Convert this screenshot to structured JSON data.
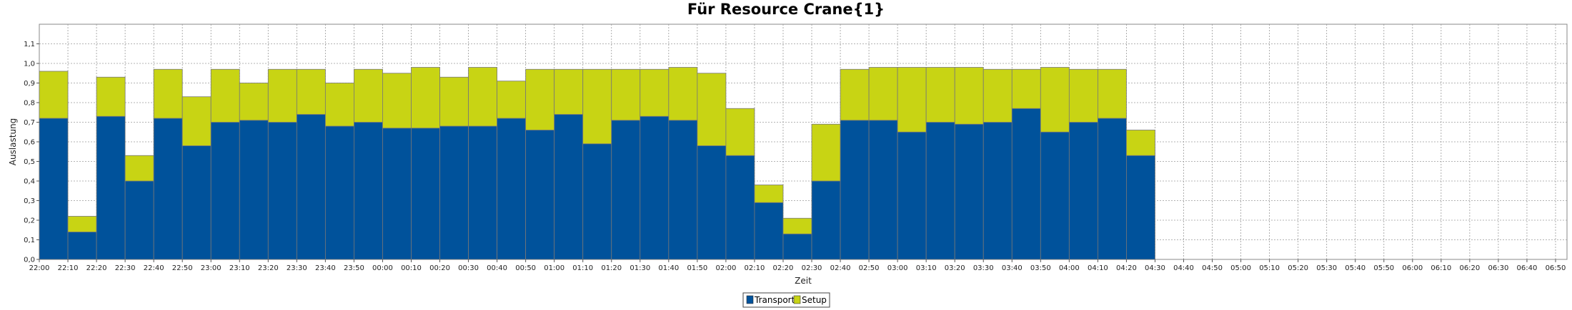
{
  "chart_data": {
    "type": "bar",
    "stacked": true,
    "title": "Für Resource Crane{1}",
    "xlabel": "Zeit",
    "ylabel": "Auslastung",
    "ylim": [
      0,
      1.2
    ],
    "yticks": [
      "0,0",
      "0,1",
      "0,2",
      "0,3",
      "0,4",
      "0,5",
      "0,6",
      "0,7",
      "0,8",
      "0,9",
      "1,0",
      "1,1"
    ],
    "x_ticks": [
      "22:00",
      "22:10",
      "22:20",
      "22:30",
      "22:40",
      "22:50",
      "23:00",
      "23:10",
      "23:20",
      "23:30",
      "23:40",
      "23:50",
      "00:00",
      "00:10",
      "00:20",
      "00:30",
      "00:40",
      "00:50",
      "01:00",
      "01:10",
      "01:20",
      "01:30",
      "01:40",
      "01:50",
      "02:00",
      "02:10",
      "02:20",
      "02:30",
      "02:40",
      "02:50",
      "03:00",
      "03:10",
      "03:20",
      "03:30",
      "03:40",
      "03:50",
      "04:00",
      "04:10",
      "04:20",
      "04:30",
      "04:40",
      "04:50",
      "05:00",
      "05:10",
      "05:20",
      "05:30",
      "05:40",
      "05:50",
      "06:00",
      "06:10",
      "06:20",
      "06:30",
      "06:40",
      "06:50"
    ],
    "x_max": "06:54",
    "grid": true,
    "legend_position": "bottom-center",
    "series": [
      {
        "name": "Transport",
        "color": "#00529b",
        "values": [
          0.72,
          0.14,
          0.73,
          0.4,
          0.72,
          0.58,
          0.7,
          0.71,
          0.7,
          0.74,
          0.68,
          0.7,
          0.67,
          0.67,
          0.68,
          0.68,
          0.72,
          0.66,
          0.74,
          0.59,
          0.71,
          0.73,
          0.71,
          0.58,
          0.53,
          0.29,
          0.13,
          0.4,
          0.71,
          0.71,
          0.65,
          0.7,
          0.69,
          0.7,
          0.77,
          0.65,
          0.7,
          0.72,
          0.53
        ]
      },
      {
        "name": "Setup",
        "color": "#c8d414",
        "values": [
          0.24,
          0.08,
          0.2,
          0.13,
          0.25,
          0.25,
          0.27,
          0.19,
          0.27,
          0.23,
          0.22,
          0.27,
          0.28,
          0.31,
          0.25,
          0.3,
          0.19,
          0.31,
          0.23,
          0.38,
          0.26,
          0.24,
          0.27,
          0.37,
          0.24,
          0.09,
          0.08,
          0.29,
          0.26,
          0.27,
          0.33,
          0.28,
          0.29,
          0.27,
          0.2,
          0.33,
          0.27,
          0.25,
          0.13
        ]
      }
    ],
    "colors": {
      "transport": "#00529b",
      "setup": "#c8d414",
      "grid": "#9a9a9a",
      "bar_border": "#777777"
    }
  }
}
